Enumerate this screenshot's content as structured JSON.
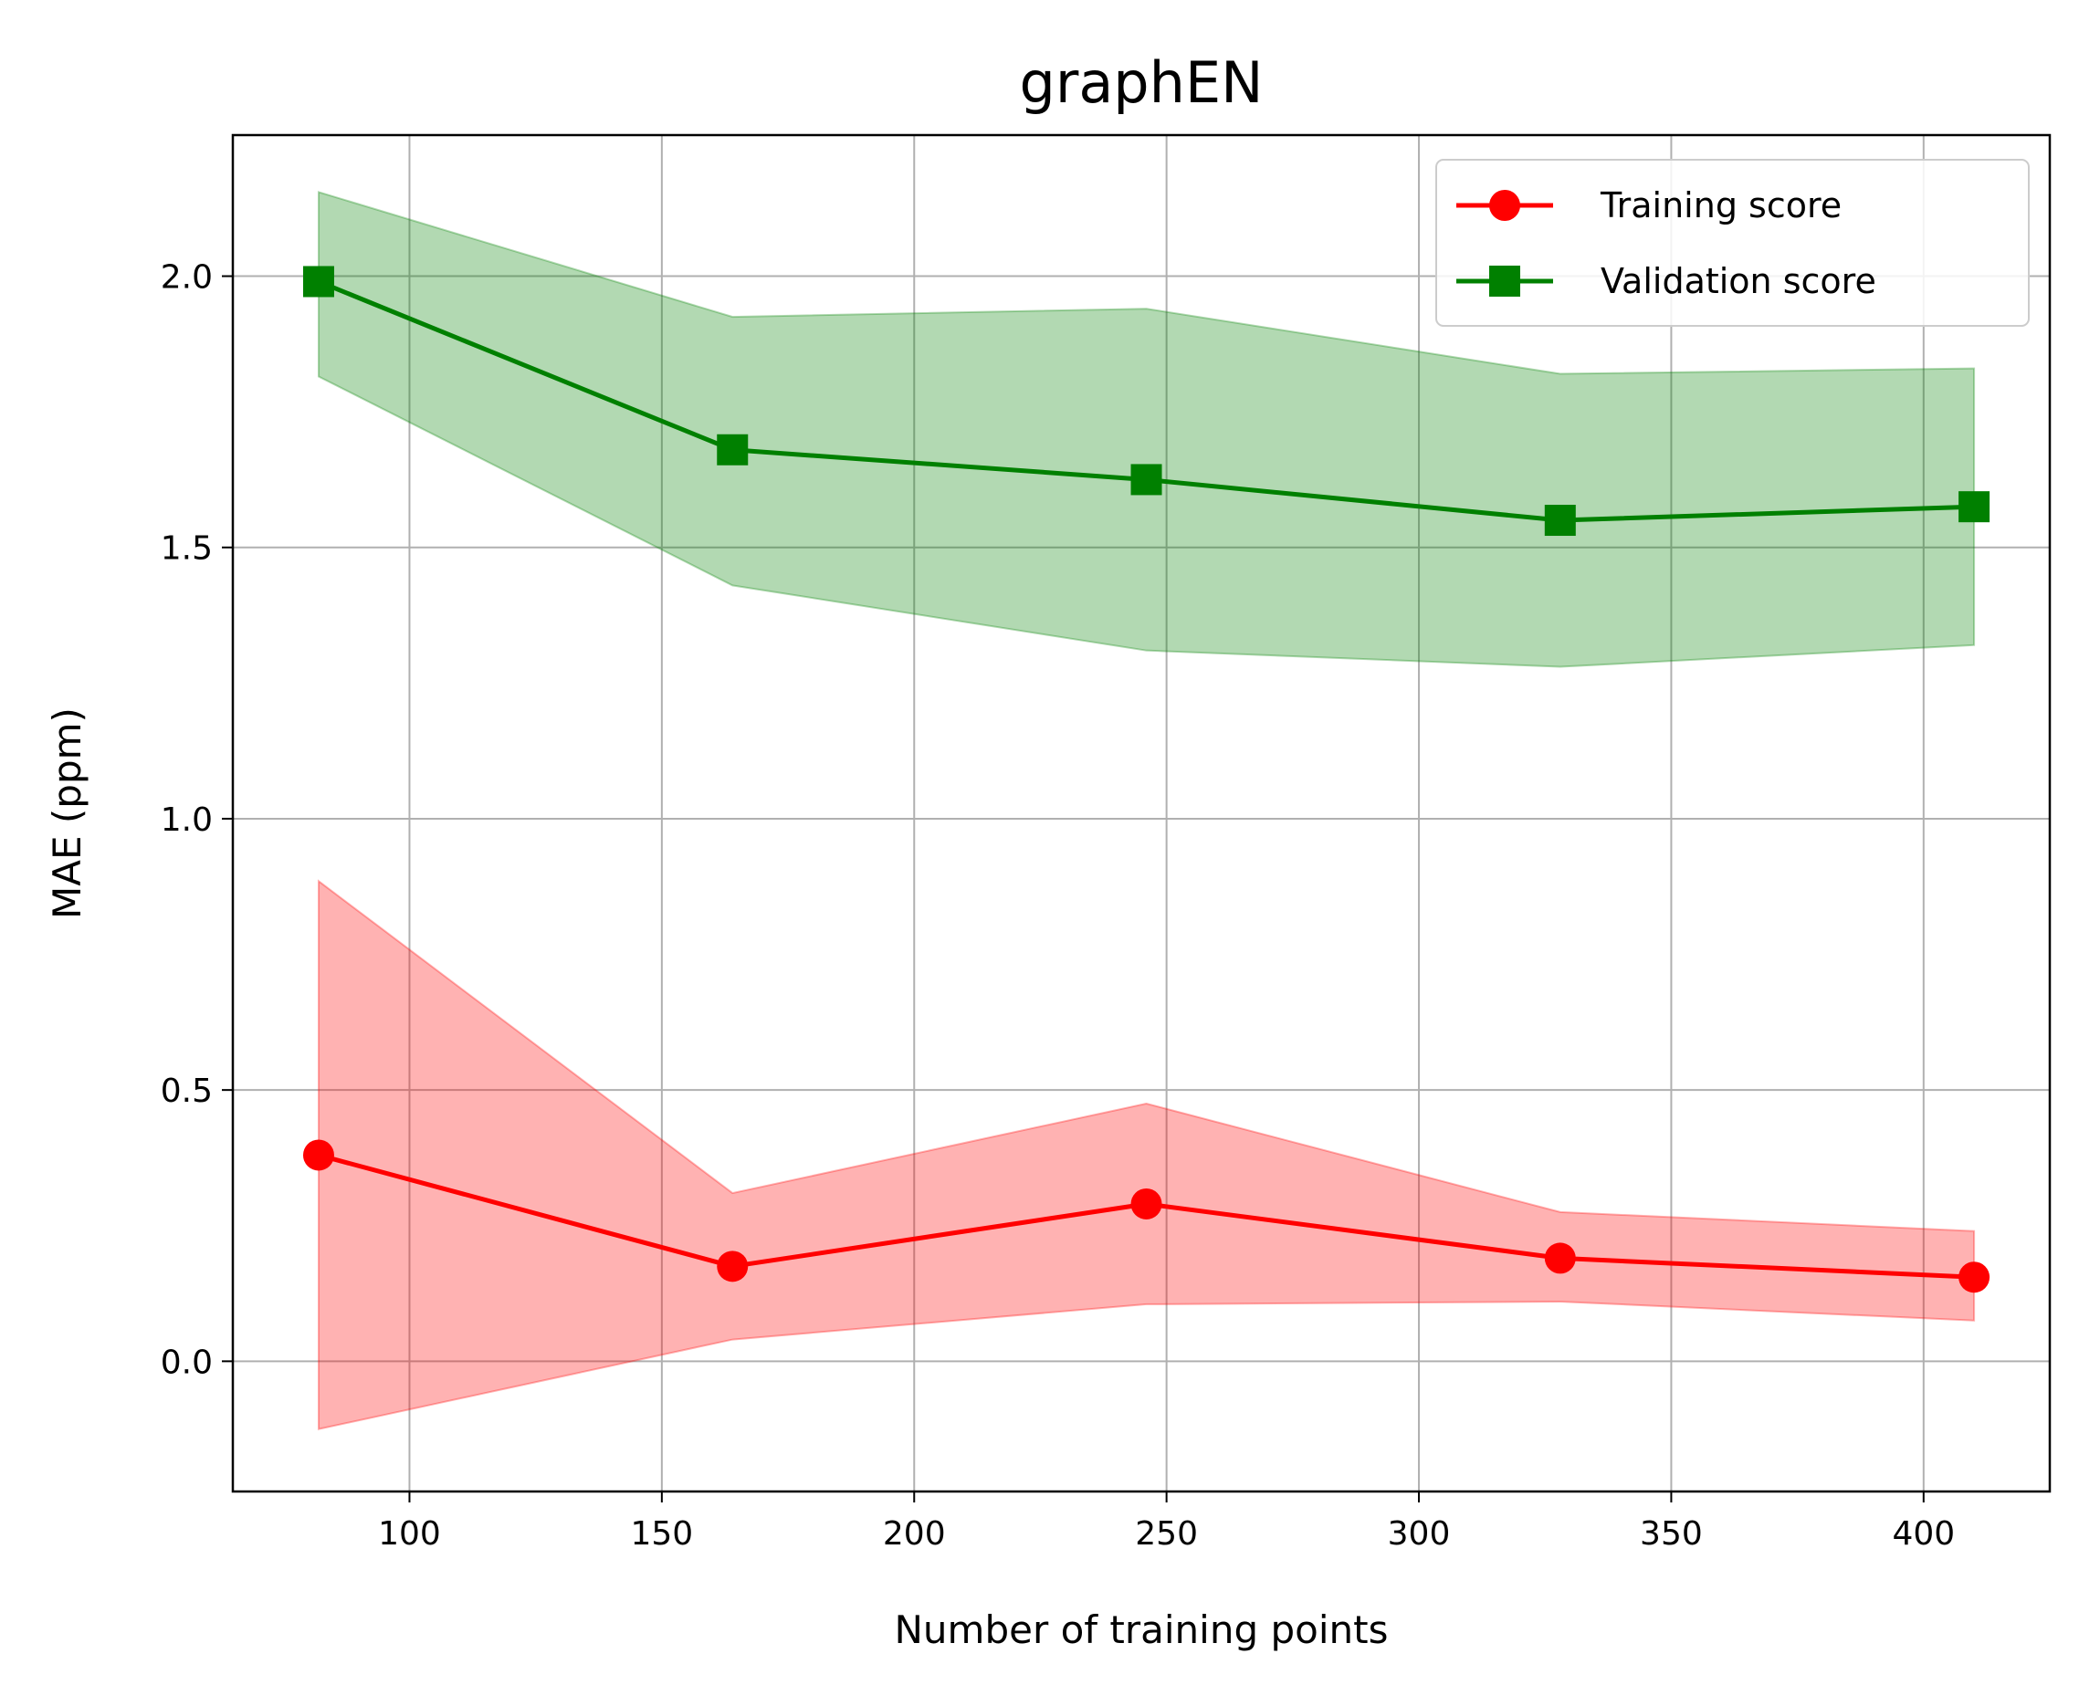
{
  "chart_data": {
    "type": "line",
    "title": "graphEN",
    "xlabel": "Number of training points",
    "ylabel": "MAE (ppm)",
    "xlim": [
      65,
      425
    ],
    "ylim": [
      -0.24,
      2.26
    ],
    "xticks": [
      100,
      150,
      200,
      250,
      300,
      350,
      400
    ],
    "yticks": [
      0.0,
      0.5,
      1.0,
      1.5,
      2.0
    ],
    "xtick_labels": [
      "100",
      "150",
      "200",
      "250",
      "300",
      "350",
      "400"
    ],
    "ytick_labels": [
      "0.0",
      "0.5",
      "1.0",
      "1.5",
      "2.0"
    ],
    "grid": true,
    "legend_position": "top-right",
    "x": [
      82,
      164,
      246,
      328,
      410
    ],
    "series": [
      {
        "name": "Training score",
        "color": "#ff0000",
        "marker": "circle",
        "values": [
          0.38,
          0.175,
          0.29,
          0.19,
          0.155
        ],
        "band_upper": [
          0.885,
          0.31,
          0.475,
          0.275,
          0.24
        ],
        "band_lower": [
          -0.125,
          0.04,
          0.105,
          0.11,
          0.075
        ]
      },
      {
        "name": "Validation score",
        "color": "#008000",
        "marker": "square",
        "values": [
          1.99,
          1.68,
          1.625,
          1.55,
          1.575
        ],
        "band_upper": [
          2.155,
          1.925,
          1.94,
          1.82,
          1.83
        ],
        "band_lower": [
          1.815,
          1.43,
          1.31,
          1.28,
          1.32
        ]
      }
    ]
  }
}
